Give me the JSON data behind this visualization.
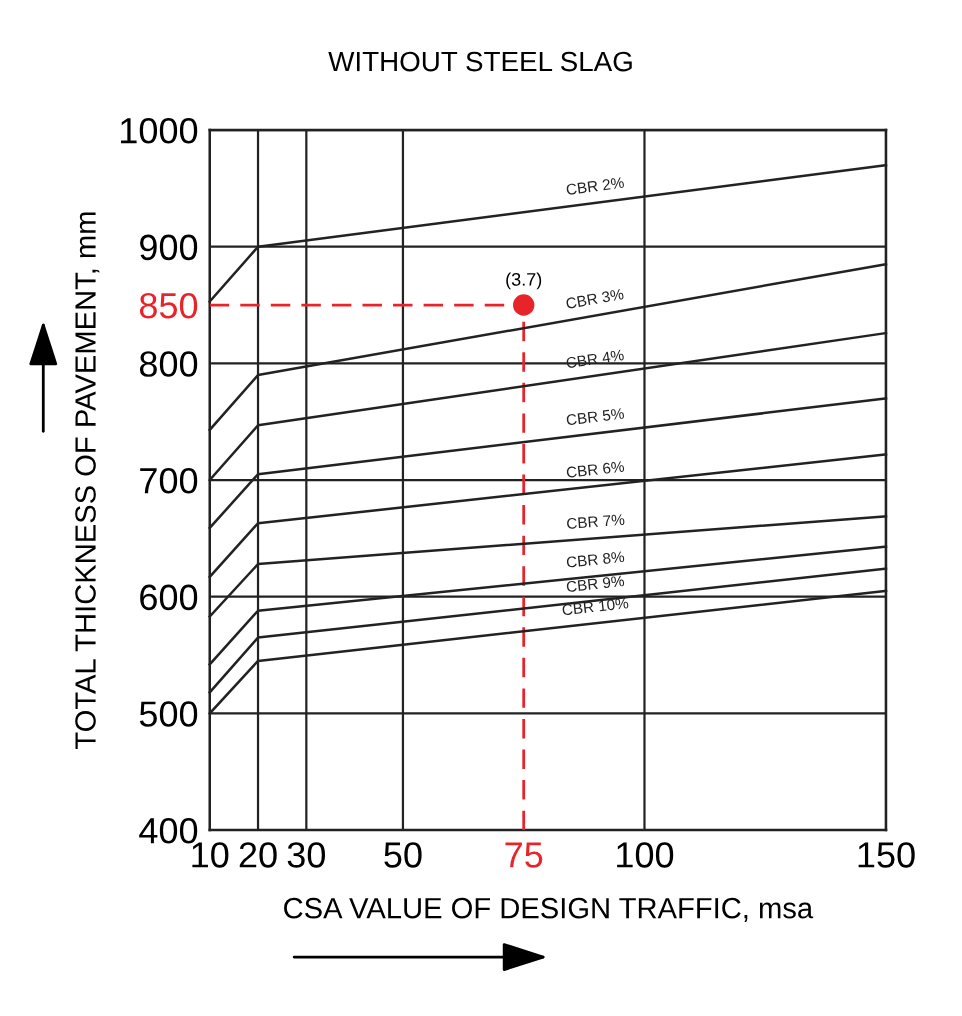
{
  "chart_data": {
    "type": "line",
    "title": "WITHOUT STEEL SLAG",
    "xlabel": "CSA VALUE OF DESIGN TRAFFIC, msa",
    "ylabel": "TOTAL THICKNESS OF PAVEMENT, mm",
    "xlim": [
      10,
      150
    ],
    "xticks": [
      10,
      20,
      30,
      50,
      {
        "value": 75,
        "label": "75"
      },
      100,
      150
    ],
    "ylim": [
      400,
      1000
    ],
    "yticks": [
      400,
      500,
      600,
      700,
      800,
      {
        "value": 850,
        "label": "850"
      },
      900,
      1000
    ],
    "grid": true,
    "legend": false,
    "marker": "none",
    "line_style": "solid",
    "x": [
      10,
      20,
      150
    ],
    "series": [
      {
        "name": "CBR 2%",
        "color": "#222222",
        "values": [
          853,
          900,
          970
        ]
      },
      {
        "name": "CBR 3%",
        "color": "#222222",
        "values": [
          743,
          790,
          885
        ]
      },
      {
        "name": "CBR 4%",
        "color": "#222222",
        "values": [
          700,
          747,
          826
        ]
      },
      {
        "name": "CBR 5%",
        "color": "#222222",
        "values": [
          659,
          705,
          770
        ]
      },
      {
        "name": "CBR 6%",
        "color": "#222222",
        "values": [
          617,
          663,
          722
        ]
      },
      {
        "name": "CBR 7%",
        "color": "#222222",
        "values": [
          583,
          628,
          669
        ]
      },
      {
        "name": "CBR 8%",
        "color": "#222222",
        "values": [
          542,
          588,
          643
        ]
      },
      {
        "name": "CBR 9%",
        "color": "#222222",
        "values": [
          518,
          565,
          624
        ]
      },
      {
        "name": "CBR 10%",
        "color": "#222222",
        "values": [
          500,
          545,
          605
        ]
      },
      {
        "type": "scatter",
        "color": "#e8242b",
        "marker": "circle",
        "x": [
          75
        ],
        "values": [
          850
        ]
      }
    ],
    "ref_lines": [
      {
        "axis": "y",
        "value": 850,
        "color": "#e8242b",
        "line_style": "dashed"
      },
      {
        "axis": "x",
        "value": 75,
        "color": "#e8242b",
        "line_style": "dashed"
      }
    ],
    "annotations": [
      {
        "text": "(3.7)",
        "x": 75,
        "y": 850
      }
    ]
  }
}
